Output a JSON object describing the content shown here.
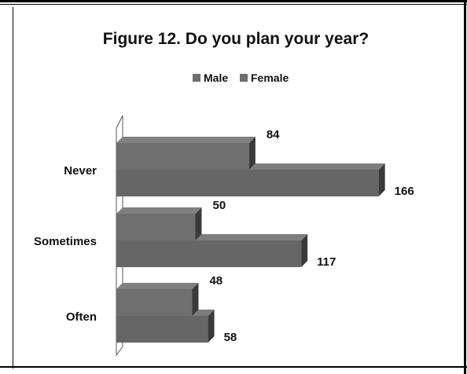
{
  "chart_data": {
    "type": "bar",
    "orientation": "horizontal",
    "title": "Figure 12. Do you plan your year?",
    "categories": [
      "Never",
      "Sometimes",
      "Often"
    ],
    "series": [
      {
        "name": "Male",
        "values": [
          84,
          50,
          48
        ]
      },
      {
        "name": "Female",
        "values": [
          166,
          117,
          58
        ]
      }
    ],
    "xlim": [
      0,
      180
    ],
    "grid": false,
    "legend": "top",
    "colors": {
      "male": "#6f6f6f",
      "female": "#666666",
      "edge": "#3a3a3a"
    }
  }
}
